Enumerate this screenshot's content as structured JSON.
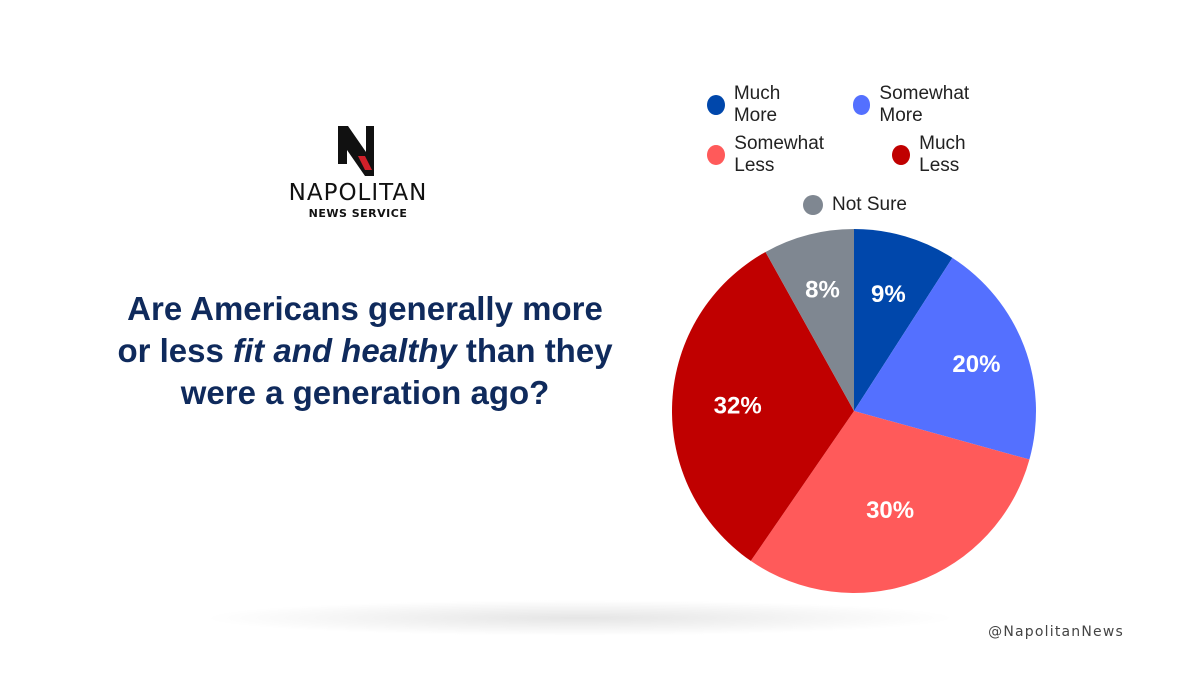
{
  "logo": {
    "name": "NAPOLITAN",
    "sub": "NEWS SERVICE",
    "colors": {
      "mark": "#111111",
      "accent": "#d0202a"
    }
  },
  "question": {
    "part1": "Are Americans generally more or less ",
    "emphasis": "fit and healthy",
    "part2": " than they were a generation ago?"
  },
  "handle": "@NapolitanNews",
  "chart_data": {
    "type": "pie",
    "title": "Are Americans generally more or less fit and healthy than they were a generation ago?",
    "legend_position": "top",
    "categories": [
      "Much More",
      "Somewhat More",
      "Somewhat Less",
      "Much Less",
      "Not Sure"
    ],
    "values": [
      9,
      20,
      30,
      32,
      8
    ],
    "labels": [
      "9%",
      "20%",
      "30%",
      "32%",
      "8%"
    ],
    "colors": [
      "#0047ab",
      "#5470ff",
      "#ff5a5a",
      "#c00000",
      "#7f8791"
    ]
  }
}
